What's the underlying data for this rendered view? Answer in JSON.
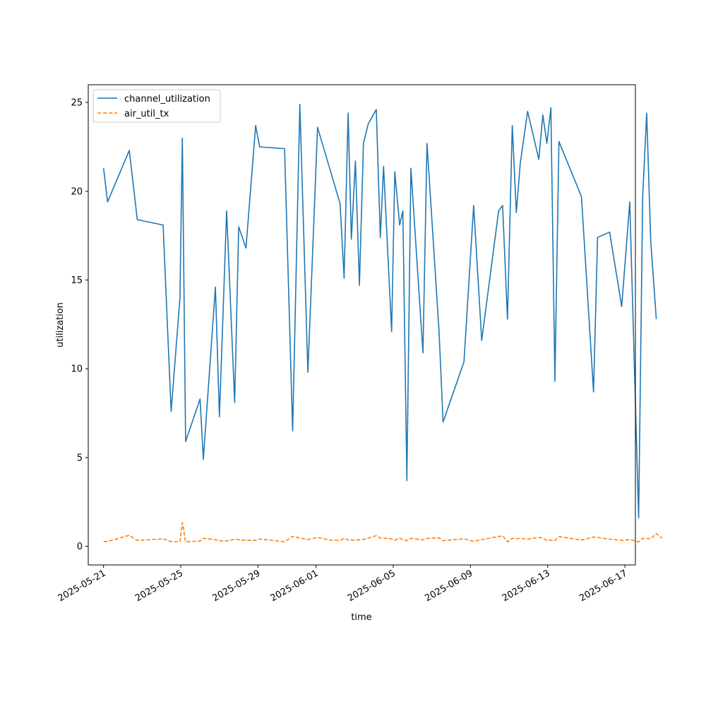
{
  "chart_data": {
    "type": "line",
    "title": "",
    "xlabel": "time",
    "ylabel": "utilization",
    "x_type": "datetime",
    "xlim": [
      "2025-05-20T05:00",
      "2025-06-17T13:00"
    ],
    "ylim": [
      -1.05,
      26.0
    ],
    "xticks": [
      "2025-05-21",
      "2025-05-25",
      "2025-05-29",
      "2025-06-01",
      "2025-06-05",
      "2025-06-09",
      "2025-06-13",
      "2025-06-17"
    ],
    "yticks": [
      0,
      5,
      10,
      15,
      20,
      25
    ],
    "grid": false,
    "legend_position": "upper left",
    "series": [
      {
        "name": "channel_utilization",
        "color": "#1f77b4",
        "linestyle": "solid",
        "points": [
          [
            "2025-05-21T00:00",
            21.3
          ],
          [
            "2025-05-21T05:00",
            19.4
          ],
          [
            "2025-05-22T08:00",
            22.3
          ],
          [
            "2025-05-22T18:00",
            18.4
          ],
          [
            "2025-05-24T02:00",
            18.1
          ],
          [
            "2025-05-24T12:00",
            7.6
          ],
          [
            "2025-05-24T23:00",
            14.0
          ],
          [
            "2025-05-25T02:00",
            23.0
          ],
          [
            "2025-05-25T06:00",
            5.9
          ],
          [
            "2025-05-26T00:00",
            8.3
          ],
          [
            "2025-05-26T04:00",
            4.9
          ],
          [
            "2025-05-26T19:00",
            14.6
          ],
          [
            "2025-05-27T00:00",
            7.3
          ],
          [
            "2025-05-27T09:00",
            18.9
          ],
          [
            "2025-05-27T19:00",
            8.1
          ],
          [
            "2025-05-28T00:00",
            18.0
          ],
          [
            "2025-05-28T09:00",
            16.8
          ],
          [
            "2025-05-28T21:00",
            23.7
          ],
          [
            "2025-05-29T02:00",
            22.5
          ],
          [
            "2025-05-30T09:00",
            22.4
          ],
          [
            "2025-05-30T19:00",
            6.5
          ],
          [
            "2025-05-31T04:00",
            24.9
          ],
          [
            "2025-05-31T14:00",
            9.8
          ],
          [
            "2025-06-01T02:00",
            23.6
          ],
          [
            "2025-06-01T17:00",
            21.3
          ],
          [
            "2025-06-02T06:00",
            19.3
          ],
          [
            "2025-06-02T11:00",
            15.1
          ],
          [
            "2025-06-02T16:00",
            24.4
          ],
          [
            "2025-06-02T20:00",
            17.3
          ],
          [
            "2025-06-03T01:00",
            21.7
          ],
          [
            "2025-06-03T06:00",
            14.7
          ],
          [
            "2025-06-03T11:00",
            22.7
          ],
          [
            "2025-06-03T17:00",
            23.8
          ],
          [
            "2025-06-04T03:00",
            24.6
          ],
          [
            "2025-06-04T08:00",
            17.4
          ],
          [
            "2025-06-04T12:00",
            21.4
          ],
          [
            "2025-06-04T22:00",
            12.1
          ],
          [
            "2025-06-05T02:00",
            21.1
          ],
          [
            "2025-06-05T08:00",
            18.1
          ],
          [
            "2025-06-05T12:00",
            18.9
          ],
          [
            "2025-06-05T17:00",
            3.7
          ],
          [
            "2025-06-05T22:00",
            21.3
          ],
          [
            "2025-06-06T13:00",
            10.9
          ],
          [
            "2025-06-06T18:00",
            22.7
          ],
          [
            "2025-06-07T09:00",
            12.1
          ],
          [
            "2025-06-07T14:00",
            7.0
          ],
          [
            "2025-06-08T16:00",
            10.4
          ],
          [
            "2025-06-09T04:00",
            19.2
          ],
          [
            "2025-06-09T14:00",
            11.6
          ],
          [
            "2025-06-10T11:00",
            18.9
          ],
          [
            "2025-06-10T16:00",
            19.2
          ],
          [
            "2025-06-10T22:00",
            12.8
          ],
          [
            "2025-06-11T04:00",
            23.7
          ],
          [
            "2025-06-11T09:00",
            18.8
          ],
          [
            "2025-06-11T14:00",
            21.6
          ],
          [
            "2025-06-11T23:00",
            24.5
          ],
          [
            "2025-06-12T13:00",
            21.8
          ],
          [
            "2025-06-12T18:00",
            24.3
          ],
          [
            "2025-06-12T23:00",
            22.7
          ],
          [
            "2025-06-13T04:00",
            24.7
          ],
          [
            "2025-06-13T09:00",
            9.3
          ],
          [
            "2025-06-13T14:00",
            22.8
          ],
          [
            "2025-06-14T18:00",
            19.7
          ],
          [
            "2025-06-15T09:00",
            8.7
          ],
          [
            "2025-06-15T14:00",
            17.4
          ],
          [
            "2025-06-16T05:00",
            17.7
          ],
          [
            "2025-06-16T20:00",
            13.5
          ],
          [
            "2025-06-17T06:00",
            19.4
          ],
          [
            "2025-06-17T17:00",
            1.6
          ],
          [
            "2025-06-17T22:00",
            19.7
          ],
          [
            "2025-06-18T03:00",
            24.4
          ],
          [
            "2025-06-18T08:00",
            17.2
          ],
          [
            "2025-06-18T15:00",
            12.8
          ]
        ]
      },
      {
        "name": "air_util_tx",
        "color": "#ff7f0e",
        "linestyle": "dashed",
        "points": [
          [
            "2025-05-21T00:00",
            0.28
          ],
          [
            "2025-05-21T05:00",
            0.27
          ],
          [
            "2025-05-22T08:00",
            0.62
          ],
          [
            "2025-05-22T18:00",
            0.33
          ],
          [
            "2025-05-24T02:00",
            0.42
          ],
          [
            "2025-05-24T12:00",
            0.26
          ],
          [
            "2025-05-24T23:00",
            0.27
          ],
          [
            "2025-05-25T02:00",
            1.33
          ],
          [
            "2025-05-25T06:00",
            0.25
          ],
          [
            "2025-05-26T00:00",
            0.3
          ],
          [
            "2025-05-26T04:00",
            0.45
          ],
          [
            "2025-05-26T19:00",
            0.37
          ],
          [
            "2025-05-27T00:00",
            0.31
          ],
          [
            "2025-05-27T09:00",
            0.3
          ],
          [
            "2025-05-27T19:00",
            0.4
          ],
          [
            "2025-05-28T00:00",
            0.37
          ],
          [
            "2025-05-28T09:00",
            0.33
          ],
          [
            "2025-05-28T21:00",
            0.34
          ],
          [
            "2025-05-29T02:00",
            0.41
          ],
          [
            "2025-05-30T09:00",
            0.26
          ],
          [
            "2025-05-30T19:00",
            0.56
          ],
          [
            "2025-05-31T04:00",
            0.47
          ],
          [
            "2025-05-31T14:00",
            0.38
          ],
          [
            "2025-06-01T02:00",
            0.5
          ],
          [
            "2025-06-01T17:00",
            0.35
          ],
          [
            "2025-06-02T06:00",
            0.33
          ],
          [
            "2025-06-02T11:00",
            0.45
          ],
          [
            "2025-06-02T16:00",
            0.35
          ],
          [
            "2025-06-02T20:00",
            0.36
          ],
          [
            "2025-06-03T01:00",
            0.34
          ],
          [
            "2025-06-03T06:00",
            0.37
          ],
          [
            "2025-06-03T11:00",
            0.39
          ],
          [
            "2025-06-03T17:00",
            0.46
          ],
          [
            "2025-06-04T03:00",
            0.6
          ],
          [
            "2025-06-04T08:00",
            0.46
          ],
          [
            "2025-06-04T12:00",
            0.46
          ],
          [
            "2025-06-04T22:00",
            0.42
          ],
          [
            "2025-06-05T02:00",
            0.34
          ],
          [
            "2025-06-05T08:00",
            0.47
          ],
          [
            "2025-06-05T12:00",
            0.36
          ],
          [
            "2025-06-05T17:00",
            0.32
          ],
          [
            "2025-06-05T22:00",
            0.45
          ],
          [
            "2025-06-06T13:00",
            0.36
          ],
          [
            "2025-06-06T18:00",
            0.45
          ],
          [
            "2025-06-07T09:00",
            0.47
          ],
          [
            "2025-06-07T14:00",
            0.32
          ],
          [
            "2025-06-08T16:00",
            0.42
          ],
          [
            "2025-06-09T04:00",
            0.28
          ],
          [
            "2025-06-09T14:00",
            0.38
          ],
          [
            "2025-06-10T11:00",
            0.55
          ],
          [
            "2025-06-10T16:00",
            0.6
          ],
          [
            "2025-06-10T22:00",
            0.25
          ],
          [
            "2025-06-11T04:00",
            0.45
          ],
          [
            "2025-06-11T09:00",
            0.42
          ],
          [
            "2025-06-11T14:00",
            0.45
          ],
          [
            "2025-06-11T23:00",
            0.4
          ],
          [
            "2025-06-12T13:00",
            0.5
          ],
          [
            "2025-06-12T18:00",
            0.47
          ],
          [
            "2025-06-12T23:00",
            0.32
          ],
          [
            "2025-06-13T04:00",
            0.35
          ],
          [
            "2025-06-13T09:00",
            0.33
          ],
          [
            "2025-06-13T14:00",
            0.55
          ],
          [
            "2025-06-14T18:00",
            0.35
          ],
          [
            "2025-06-15T09:00",
            0.52
          ],
          [
            "2025-06-15T14:00",
            0.5
          ],
          [
            "2025-06-16T05:00",
            0.4
          ],
          [
            "2025-06-16T20:00",
            0.33
          ],
          [
            "2025-06-17T06:00",
            0.38
          ],
          [
            "2025-06-17T17:00",
            0.25
          ],
          [
            "2025-06-17T22:00",
            0.45
          ],
          [
            "2025-06-18T03:00",
            0.44
          ],
          [
            "2025-06-18T08:00",
            0.42
          ],
          [
            "2025-06-18T15:00",
            0.72
          ],
          [
            "2025-06-18T22:00",
            0.45
          ]
        ]
      }
    ]
  }
}
